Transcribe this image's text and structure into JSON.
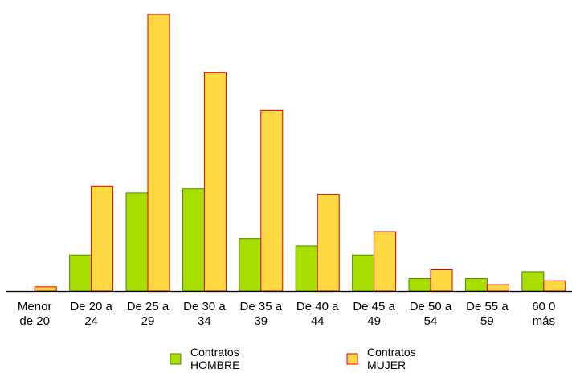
{
  "chart_data": {
    "type": "bar",
    "title": "",
    "xlabel": "",
    "ylabel": "",
    "categories": [
      [
        "Menor",
        "de 20"
      ],
      [
        "De 20 a",
        "24"
      ],
      [
        "De 25 a",
        "29"
      ],
      [
        "De 30 a",
        "34"
      ],
      [
        "De 35 a",
        "39"
      ],
      [
        "De 40 a",
        "44"
      ],
      [
        "De 45 a",
        "49"
      ],
      [
        "De 50 a",
        "54"
      ],
      [
        "De 55 a",
        "59"
      ],
      [
        "60 0",
        "más"
      ]
    ],
    "ylim": [
      0,
      100
    ],
    "grid": false,
    "legend_position": "bottom",
    "series": [
      {
        "name": [
          "Contratos",
          "HOMBRE"
        ],
        "color": "#a8df00",
        "stroke": "#4a8a00",
        "values": [
          0,
          13,
          35.5,
          37,
          19,
          16.3,
          13,
          4.5,
          4.5,
          7
        ]
      },
      {
        "name": [
          "Contratos",
          "MUJER"
        ],
        "color": "#ffd943",
        "stroke": "#e00000",
        "values": [
          1.5,
          38,
          100,
          79,
          65.3,
          35,
          21.5,
          7.7,
          2.3,
          3.7
        ]
      }
    ]
  }
}
